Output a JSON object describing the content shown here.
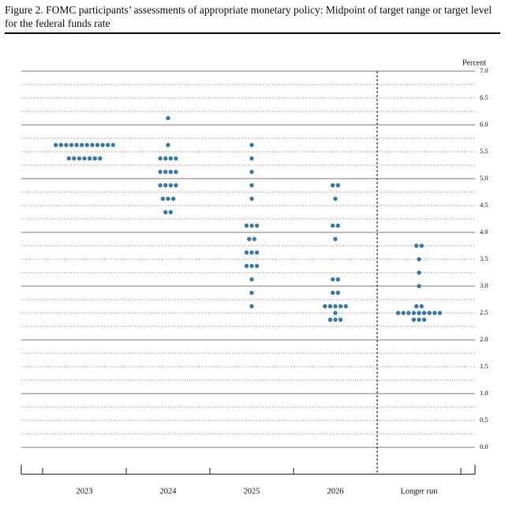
{
  "chart_data": {
    "type": "dot",
    "title": "Figure 2.  FOMC participants’ assessments of appropriate monetary policy: Midpoint of target range or target level for the federal funds rate",
    "y_axis_label": "Percent",
    "categories": [
      "2023",
      "2024",
      "2025",
      "2026",
      "Longer run"
    ],
    "values": [
      [
        5.625,
        5.625,
        5.625,
        5.625,
        5.625,
        5.625,
        5.625,
        5.625,
        5.625,
        5.625,
        5.625,
        5.625,
        5.375,
        5.375,
        5.375,
        5.375,
        5.375,
        5.375,
        5.375
      ],
      [
        6.125,
        5.625,
        5.375,
        5.375,
        5.375,
        5.375,
        5.125,
        5.125,
        5.125,
        5.125,
        4.875,
        4.875,
        4.875,
        4.875,
        4.625,
        4.625,
        4.625,
        4.375,
        4.375
      ],
      [
        5.625,
        5.375,
        5.125,
        4.875,
        4.625,
        4.125,
        4.125,
        4.125,
        3.875,
        3.875,
        3.625,
        3.625,
        3.625,
        3.375,
        3.375,
        3.375,
        3.125,
        2.875,
        2.625
      ],
      [
        4.875,
        4.875,
        4.625,
        4.125,
        4.125,
        3.875,
        3.125,
        3.125,
        2.875,
        2.875,
        2.625,
        2.625,
        2.625,
        2.625,
        2.625,
        2.5,
        2.375,
        2.375,
        2.375
      ],
      [
        3.75,
        3.75,
        3.5,
        3.25,
        3.0,
        2.625,
        2.625,
        2.5,
        2.5,
        2.5,
        2.5,
        2.5,
        2.5,
        2.5,
        2.5,
        2.5,
        2.375,
        2.375,
        2.375
      ]
    ],
    "color": "#3a78a8",
    "ylim": [
      0,
      7
    ],
    "yticks": [
      {
        "value": 0,
        "label": "0.0"
      },
      {
        "value": 0.5,
        "label": "0.5"
      },
      {
        "value": 1,
        "label": "1.0"
      },
      {
        "value": 1.5,
        "label": "1.5"
      },
      {
        "value": 2,
        "label": "2.0"
      },
      {
        "value": 2.5,
        "label": "2.5"
      },
      {
        "value": 3,
        "label": "3.0"
      },
      {
        "value": 3.5,
        "label": "3.5"
      },
      {
        "value": 4,
        "label": "4.0"
      },
      {
        "value": 4.5,
        "label": "4.5"
      },
      {
        "value": 5,
        "label": "5.0"
      },
      {
        "value": 5.5,
        "label": "5.5"
      },
      {
        "value": 6,
        "label": "6.0"
      },
      {
        "value": 6.5,
        "label": "6.5"
      },
      {
        "value": 7,
        "label": "7.0"
      }
    ],
    "grid": true
  }
}
